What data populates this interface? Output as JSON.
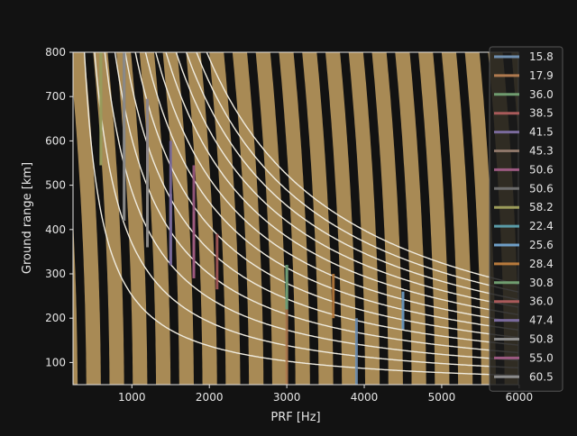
{
  "colors": {
    "background": "#121212",
    "band": "#a88a55",
    "band_gap": "#121212",
    "contour": "#f0ece0",
    "axis": "#e6e6e6",
    "text": "#e6e6e6"
  },
  "chart_data": {
    "type": "line",
    "xlabel": "PRF [Hz]",
    "ylabel": "Ground range [km]",
    "xlim": [
      240,
      5990
    ],
    "ylim": [
      50,
      800
    ],
    "xticks": [
      1000,
      2000,
      3000,
      4000,
      5000,
      6000
    ],
    "yticks": [
      100,
      200,
      300,
      400,
      500,
      600,
      700,
      800
    ],
    "grid": false,
    "legend_position": "right",
    "background_bands": "diagonal alternating tan and black curved stripes (range ambiguity zones)",
    "white_contours": "family of white hyperbolic curves across the plot",
    "series": [
      {
        "name": "15.8",
        "color": "#6f8fb0",
        "x": [
          3900,
          3900
        ],
        "y": [
          50,
          200
        ]
      },
      {
        "name": "17.9",
        "color": "#b07a4f",
        "x": [
          3000,
          3000
        ],
        "y": [
          50,
          320
        ]
      },
      {
        "name": "36.0",
        "color": "#6f9c6f",
        "x": [
          600,
          600
        ],
        "y": [
          545,
          800
        ]
      },
      {
        "name": "38.5",
        "color": "#a85a5a",
        "x": [
          1800,
          1800
        ],
        "y": [
          290,
          440
        ]
      },
      {
        "name": "41.5",
        "color": "#7a6a9c",
        "x": [
          1500,
          1500
        ],
        "y": [
          320,
          480
        ]
      },
      {
        "name": "45.3",
        "color": "#8c7568",
        "x": [
          1200,
          1200
        ],
        "y": [
          360,
          530
        ]
      },
      {
        "name": "50.6",
        "color": "#9c5a82",
        "x": [
          1200,
          1200
        ],
        "y": [
          530,
          695
        ]
      },
      {
        "name": "50.6",
        "color": "#6c6c6c",
        "x": [
          900,
          900
        ],
        "y": [
          420,
          800
        ]
      },
      {
        "name": "58.2",
        "color": "#9c9c5a",
        "x": [
          600,
          600
        ],
        "y": [
          545,
          800
        ]
      },
      {
        "name": "22.4",
        "color": "#5a9ca8",
        "x": [
          3000,
          3000
        ],
        "y": [
          220,
          320
        ]
      },
      {
        "name": "25.6",
        "color": "#6f9fc8",
        "x": [
          4500,
          4500
        ],
        "y": [
          175,
          260
        ]
      },
      {
        "name": "28.4",
        "color": "#b87a3c",
        "x": [
          3600,
          3600
        ],
        "y": [
          200,
          300
        ]
      },
      {
        "name": "30.8",
        "color": "#6f9c6f",
        "x": [
          3000,
          3000
        ],
        "y": [
          220,
          320
        ]
      },
      {
        "name": "36.0",
        "color": "#a85a5a",
        "x": [
          2100,
          2100
        ],
        "y": [
          265,
          390
        ]
      },
      {
        "name": "47.4",
        "color": "#7a6a9c",
        "x": [
          1500,
          1500
        ],
        "y": [
          320,
          600
        ]
      },
      {
        "name": "50.8",
        "color": "#8c8c8c",
        "x": [
          900,
          900
        ],
        "y": [
          420,
          800
        ]
      },
      {
        "name": "55.0",
        "color": "#9c5a82",
        "x": [
          1800,
          1800
        ],
        "y": [
          290,
          545
        ]
      },
      {
        "name": "60.5",
        "color": "#8c8c8c",
        "x": [
          1200,
          1200
        ],
        "y": [
          360,
          695
        ]
      }
    ]
  }
}
